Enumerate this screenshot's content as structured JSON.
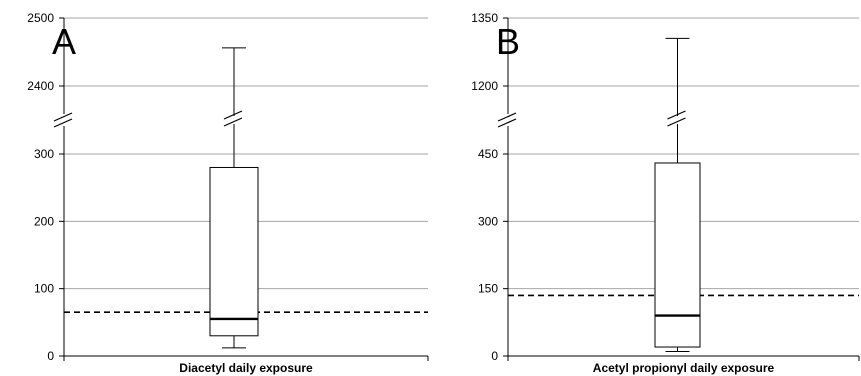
{
  "chart_data": [
    {
      "type": "box",
      "panel_label": "A",
      "xlabel": "Diacetyl daily exposure",
      "ylabel": "",
      "title": "",
      "axis_break": true,
      "upper_ticks": [
        2400,
        2500
      ],
      "lower_ticks": [
        0,
        100,
        200,
        300
      ],
      "grid": true,
      "box": {
        "whisker_low": 12,
        "q1": 30,
        "median": 55,
        "q3": 280,
        "whisker_high": 2456
      },
      "reference_line": 65
    },
    {
      "type": "box",
      "panel_label": "B",
      "xlabel": "Acetyl propionyl  daily exposure",
      "ylabel": "",
      "title": "",
      "axis_break": true,
      "upper_ticks": [
        1200,
        1350
      ],
      "lower_ticks": [
        0,
        150,
        300,
        450
      ],
      "grid": true,
      "box": {
        "whisker_low": 10,
        "q1": 20,
        "median": 90,
        "q3": 430,
        "whisker_high": 1305
      },
      "reference_line": 135
    }
  ]
}
